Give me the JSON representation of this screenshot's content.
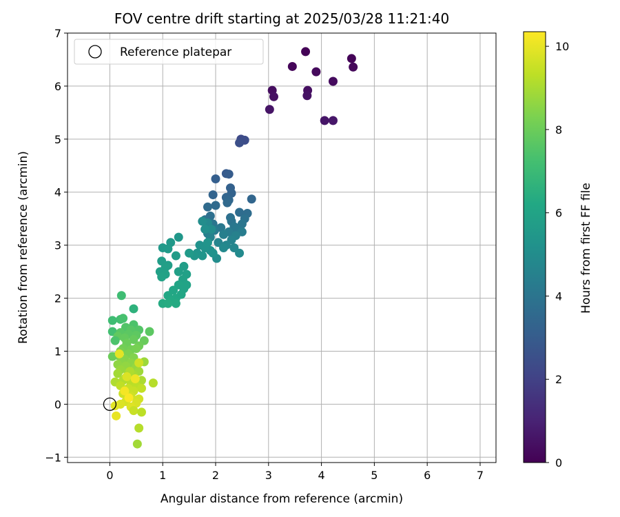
{
  "chart_data": {
    "type": "scatter",
    "title": "FOV centre drift starting at 2025/03/28 11:21:40",
    "xlabel": "Angular distance from reference (arcmin)",
    "ylabel": "Rotation from reference (arcmin)",
    "xlim": [
      -0.8,
      7.3
    ],
    "ylim": [
      -1.1,
      7.0
    ],
    "xticks": [
      "0",
      "1",
      "2",
      "3",
      "4",
      "5",
      "6",
      "7"
    ],
    "yticks": [
      "−1",
      "0",
      "1",
      "2",
      "3",
      "4",
      "5",
      "6",
      "7"
    ],
    "xtick_values": [
      0,
      1,
      2,
      3,
      4,
      5,
      6,
      7
    ],
    "ytick_values": [
      -1,
      0,
      1,
      2,
      3,
      4,
      5,
      6,
      7
    ],
    "grid": true,
    "legend": {
      "placement": "top-left",
      "entries": [
        {
          "label": "Reference platepar",
          "marker": "open-circle"
        }
      ]
    },
    "reference_point": {
      "x": 0,
      "y": 0
    },
    "colorbar": {
      "label": "Hours from first FF file",
      "range": [
        0,
        10.35
      ],
      "ticks": [
        "0",
        "2",
        "4",
        "6",
        "8",
        "10"
      ],
      "tick_values": [
        0,
        2,
        4,
        6,
        8,
        10
      ],
      "colormap": "viridis"
    },
    "series": [
      {
        "points": [
          [
            3.7,
            6.65,
            0.05
          ],
          [
            4.57,
            6.52,
            0.1
          ],
          [
            3.45,
            6.37,
            0.15
          ],
          [
            4.6,
            6.36,
            0.2
          ],
          [
            3.9,
            6.27,
            0.25
          ],
          [
            4.22,
            6.09,
            0.3
          ],
          [
            3.07,
            5.92,
            0.35
          ],
          [
            3.74,
            5.92,
            0.4
          ],
          [
            3.1,
            5.8,
            0.45
          ],
          [
            3.73,
            5.82,
            0.5
          ],
          [
            3.02,
            5.56,
            0.55
          ],
          [
            4.06,
            5.35,
            0.6
          ],
          [
            4.22,
            5.35,
            0.65
          ],
          [
            2.48,
            5.0,
            2.3
          ],
          [
            2.55,
            4.98,
            2.4
          ],
          [
            2.45,
            4.93,
            2.5
          ],
          [
            2.2,
            4.35,
            2.9
          ],
          [
            2.25,
            4.34,
            3.0
          ],
          [
            2.0,
            4.25,
            3.1
          ],
          [
            2.28,
            4.08,
            3.2
          ],
          [
            2.3,
            3.98,
            3.25
          ],
          [
            1.95,
            3.95,
            3.3
          ],
          [
            2.2,
            3.9,
            3.35
          ],
          [
            2.68,
            3.87,
            3.4
          ],
          [
            2.25,
            3.85,
            3.45
          ],
          [
            2.22,
            3.8,
            3.5
          ],
          [
            2.0,
            3.75,
            3.55
          ],
          [
            1.85,
            3.72,
            3.6
          ],
          [
            2.45,
            3.62,
            3.65
          ],
          [
            2.6,
            3.6,
            3.7
          ],
          [
            1.9,
            3.55,
            3.75
          ],
          [
            2.28,
            3.52,
            3.8
          ],
          [
            2.55,
            3.5,
            3.85
          ],
          [
            1.8,
            3.48,
            3.9
          ],
          [
            2.3,
            3.45,
            3.95
          ],
          [
            1.95,
            3.4,
            4.0
          ],
          [
            2.5,
            3.4,
            4.05
          ],
          [
            2.35,
            3.35,
            4.1
          ],
          [
            2.1,
            3.33,
            4.15
          ],
          [
            2.4,
            3.3,
            4.2
          ],
          [
            1.98,
            3.28,
            4.25
          ],
          [
            2.25,
            3.25,
            4.3
          ],
          [
            2.5,
            3.25,
            4.35
          ],
          [
            1.85,
            3.22,
            4.4
          ],
          [
            2.15,
            3.2,
            4.45
          ],
          [
            2.38,
            3.18,
            4.5
          ],
          [
            1.9,
            3.15,
            4.55
          ],
          [
            2.3,
            3.1,
            4.6
          ],
          [
            2.05,
            3.05,
            4.65
          ],
          [
            2.2,
            3.0,
            4.7
          ],
          [
            2.35,
            2.95,
            4.75
          ],
          [
            1.85,
            3.42,
            4.8
          ],
          [
            2.45,
            2.85,
            4.9
          ],
          [
            2.02,
            2.75,
            5.0
          ],
          [
            2.15,
            2.95,
            4.85
          ],
          [
            1.92,
            3.3,
            4.95
          ],
          [
            1.75,
            3.45,
            5.0
          ],
          [
            1.8,
            3.3,
            5.1
          ],
          [
            1.7,
            3.0,
            5.2
          ],
          [
            1.65,
            2.85,
            5.3
          ],
          [
            1.75,
            2.8,
            5.35
          ],
          [
            1.9,
            2.9,
            5.15
          ],
          [
            1.8,
            2.95,
            5.25
          ],
          [
            1.95,
            2.85,
            5.2
          ],
          [
            1.6,
            2.8,
            5.4
          ],
          [
            1.85,
            3.05,
            5.3
          ],
          [
            1.3,
            3.15,
            5.45
          ],
          [
            1.15,
            3.05,
            5.5
          ],
          [
            1.0,
            2.95,
            5.55
          ],
          [
            1.1,
            2.93,
            5.6
          ],
          [
            1.25,
            2.8,
            5.65
          ],
          [
            1.5,
            2.85,
            5.6
          ],
          [
            0.98,
            2.7,
            5.7
          ],
          [
            1.1,
            2.62,
            5.75
          ],
          [
            1.05,
            2.58,
            5.8
          ],
          [
            1.4,
            2.6,
            5.75
          ],
          [
            0.95,
            2.5,
            5.85
          ],
          [
            1.05,
            2.45,
            5.9
          ],
          [
            0.98,
            2.4,
            5.95
          ],
          [
            1.3,
            2.5,
            5.8
          ],
          [
            1.45,
            2.45,
            5.85
          ],
          [
            1.38,
            2.35,
            5.9
          ],
          [
            1.45,
            2.25,
            6.0
          ],
          [
            1.3,
            2.25,
            6.05
          ],
          [
            1.2,
            2.15,
            6.1
          ],
          [
            1.4,
            2.18,
            6.0
          ],
          [
            1.1,
            2.05,
            6.15
          ],
          [
            1.25,
            2.0,
            6.2
          ],
          [
            1.35,
            2.07,
            6.1
          ],
          [
            1.15,
            1.95,
            6.25
          ],
          [
            1.0,
            1.9,
            6.3
          ],
          [
            1.1,
            1.9,
            6.35
          ],
          [
            1.25,
            1.9,
            6.3
          ],
          [
            0.22,
            2.05,
            7.1
          ],
          [
            0.45,
            1.8,
            6.6
          ],
          [
            0.2,
            1.6,
            7.2
          ],
          [
            0.05,
            1.58,
            7.1
          ],
          [
            0.25,
            1.62,
            7.3
          ],
          [
            0.45,
            1.5,
            7.4
          ],
          [
            0.3,
            1.45,
            7.5
          ],
          [
            0.55,
            1.4,
            7.55
          ],
          [
            0.4,
            1.4,
            7.6
          ],
          [
            0.05,
            1.37,
            7.2
          ],
          [
            0.75,
            1.37,
            7.7
          ],
          [
            0.2,
            1.35,
            7.65
          ],
          [
            0.35,
            1.32,
            7.7
          ],
          [
            0.5,
            1.3,
            7.75
          ],
          [
            0.15,
            1.28,
            7.8
          ],
          [
            0.28,
            1.25,
            7.85
          ],
          [
            0.45,
            1.22,
            7.9
          ],
          [
            0.65,
            1.2,
            7.95
          ],
          [
            0.1,
            1.2,
            7.4
          ],
          [
            0.32,
            1.15,
            8.0
          ],
          [
            0.55,
            1.1,
            8.05
          ],
          [
            0.25,
            1.05,
            8.1
          ],
          [
            0.4,
            1.03,
            8.15
          ],
          [
            0.5,
            1.05,
            8.2
          ],
          [
            0.2,
            1.0,
            8.25
          ],
          [
            0.35,
            0.95,
            8.3
          ],
          [
            0.15,
            0.92,
            8.35
          ],
          [
            0.05,
            0.9,
            8.0
          ],
          [
            0.45,
            0.88,
            8.4
          ],
          [
            0.28,
            0.85,
            8.45
          ],
          [
            0.22,
            0.8,
            8.5
          ],
          [
            0.4,
            0.78,
            8.55
          ],
          [
            0.15,
            0.75,
            8.6
          ],
          [
            0.3,
            0.72,
            8.65
          ],
          [
            0.5,
            0.7,
            8.7
          ],
          [
            0.2,
            0.65,
            8.75
          ],
          [
            0.35,
            0.6,
            8.8
          ],
          [
            0.55,
            0.62,
            8.85
          ],
          [
            0.15,
            0.58,
            8.9
          ],
          [
            0.45,
            0.55,
            8.95
          ],
          [
            0.3,
            0.5,
            9.0
          ],
          [
            0.6,
            0.45,
            9.05
          ],
          [
            0.1,
            0.42,
            9.1
          ],
          [
            0.25,
            0.45,
            9.15
          ],
          [
            0.82,
            0.4,
            9.2
          ],
          [
            0.4,
            0.4,
            9.25
          ],
          [
            0.5,
            0.35,
            9.3
          ],
          [
            0.2,
            0.35,
            9.35
          ],
          [
            0.6,
            0.3,
            9.4
          ],
          [
            0.35,
            0.3,
            9.45
          ],
          [
            0.45,
            0.25,
            9.5
          ],
          [
            0.25,
            0.2,
            9.55
          ],
          [
            0.4,
            0.15,
            9.6
          ],
          [
            0.55,
            0.1,
            9.65
          ],
          [
            0.3,
            0.05,
            9.7
          ],
          [
            0.5,
            0.02,
            9.75
          ],
          [
            0.2,
            0.0,
            9.8
          ],
          [
            0.4,
            -0.05,
            9.85
          ],
          [
            0.1,
            -0.03,
            9.9
          ],
          [
            0.45,
            -0.12,
            9.5
          ],
          [
            0.6,
            -0.15,
            9.3
          ],
          [
            0.12,
            -0.22,
            10.0
          ],
          [
            0.55,
            -0.45,
            9.2
          ],
          [
            0.52,
            -0.75,
            8.9
          ],
          [
            0.65,
            0.8,
            8.8
          ],
          [
            0.38,
            0.62,
            9.1
          ],
          [
            0.55,
            0.78,
            9.6
          ],
          [
            0.32,
            0.52,
            9.8
          ],
          [
            0.48,
            0.48,
            10.1
          ],
          [
            0.28,
            0.25,
            10.2
          ],
          [
            0.36,
            0.12,
            10.3
          ],
          [
            0.18,
            0.95,
            9.95
          ]
        ]
      }
    ]
  }
}
